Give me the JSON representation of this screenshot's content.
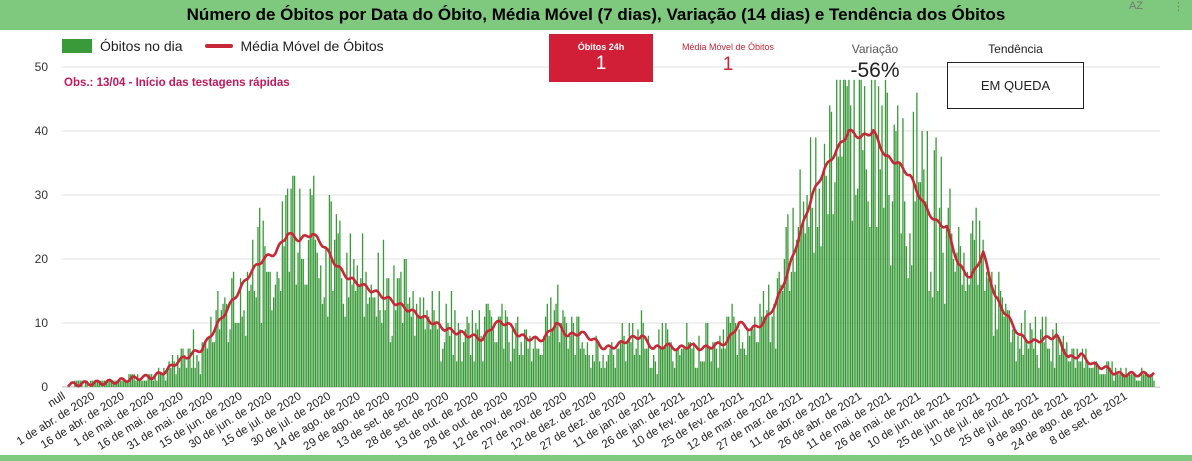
{
  "header": {
    "title": "Número de Óbitos por Data do Óbito, Média Móvel (7 dias), Variação (14 dias) e Tendência dos Óbitos",
    "corner_label": "AZ",
    "menu_icon": "more-vert-icon"
  },
  "legend": {
    "bars_label": "Óbitos no dia",
    "line_label": "Média Móvel de Óbitos"
  },
  "note": "Obs.: 13/04 - Início das testagens rápidas",
  "kpis": {
    "deaths_24h": {
      "label": "Óbitos 24h",
      "value": "1"
    },
    "moving_avg": {
      "label": "Média Móvel de Óbitos",
      "value": "1"
    },
    "variation": {
      "label": "Variação",
      "value": "-56%"
    },
    "trend": {
      "label": "Tendência",
      "value": "EM QUEDA"
    }
  },
  "colors": {
    "bars": "#3a9a3a",
    "line": "#c62838",
    "header": "#7fc97f",
    "kpi": "#d11f37"
  },
  "chart_data": {
    "type": "bar",
    "ylim": [
      0,
      50
    ],
    "yticks": [
      0,
      10,
      20,
      30,
      40,
      50
    ],
    "grid": true,
    "legend_position": "top-left",
    "x_tick_labels": [
      "null",
      "1 de abr. de 2020",
      "16 de abr. de 2020",
      "1 de mai. de 2020",
      "16 de mai. de 2020",
      "31 de mai. de 2020",
      "15 de jun. de 2020",
      "30 de jun. de 2020",
      "15 de jul. de 2020",
      "30 de jul. de 2020",
      "14 de ago. de 2020",
      "29 de ago. de 2020",
      "13 de set. de 2020",
      "28 de set. de 2020",
      "13 de out. de 2020",
      "28 de out. de 2020",
      "12 de nov. de 2020",
      "27 de nov. de 2020",
      "12 de dez. de 2020",
      "27 de dez. de 2020",
      "11 de jan. de 2021",
      "26 de jan. de 2021",
      "10 de fev. de 2021",
      "25 de fev. de 2021",
      "12 de mar. de 2021",
      "27 de mar. de 2021",
      "11 de abr. de 2021",
      "26 de abr. de 2021",
      "11 de mai. de 2021",
      "26 de mai. de 2021",
      "10 de jun. de 2021",
      "25 de jun. de 2021",
      "10 de jul. de 2021",
      "25 de jul. de 2021",
      "9 de ago. de 2021",
      "24 de ago. de 2021",
      "8 de set. de 2021"
    ],
    "moving_average_weekly": [
      [
        "2020-04-01",
        0.3
      ],
      [
        "2020-04-08",
        0.5
      ],
      [
        "2020-04-15",
        0.6
      ],
      [
        "2020-04-22",
        0.7
      ],
      [
        "2020-04-29",
        0.9
      ],
      [
        "2020-05-06",
        1.2
      ],
      [
        "2020-05-13",
        1.5
      ],
      [
        "2020-05-20",
        1.6
      ],
      [
        "2020-05-27",
        2.5
      ],
      [
        "2020-06-03",
        4
      ],
      [
        "2020-06-10",
        5
      ],
      [
        "2020-06-17",
        6
      ],
      [
        "2020-06-24",
        9
      ],
      [
        "2020-07-01",
        12
      ],
      [
        "2020-07-08",
        15
      ],
      [
        "2020-07-15",
        18
      ],
      [
        "2020-07-22",
        20
      ],
      [
        "2020-07-29",
        21
      ],
      [
        "2020-08-05",
        24
      ],
      [
        "2020-08-12",
        23
      ],
      [
        "2020-08-19",
        24
      ],
      [
        "2020-08-26",
        22
      ],
      [
        "2020-09-02",
        19
      ],
      [
        "2020-09-09",
        17
      ],
      [
        "2020-09-16",
        16
      ],
      [
        "2020-09-23",
        15
      ],
      [
        "2020-09-30",
        14
      ],
      [
        "2020-10-07",
        13
      ],
      [
        "2020-10-14",
        12
      ],
      [
        "2020-10-21",
        11
      ],
      [
        "2020-10-28",
        10
      ],
      [
        "2020-11-04",
        9
      ],
      [
        "2020-11-11",
        8.5
      ],
      [
        "2020-11-18",
        8
      ],
      [
        "2020-11-25",
        7.5
      ],
      [
        "2020-12-02",
        10
      ],
      [
        "2020-12-09",
        10
      ],
      [
        "2020-12-16",
        8
      ],
      [
        "2020-12-23",
        7.5
      ],
      [
        "2020-12-30",
        7.5
      ],
      [
        "2021-01-06",
        10
      ],
      [
        "2021-01-13",
        8
      ],
      [
        "2021-01-20",
        8.5
      ],
      [
        "2021-01-27",
        7.5
      ],
      [
        "2021-02-03",
        6
      ],
      [
        "2021-02-10",
        6.5
      ],
      [
        "2021-02-17",
        7.5
      ],
      [
        "2021-02-24",
        8
      ],
      [
        "2021-03-03",
        6
      ],
      [
        "2021-03-10",
        6.5
      ],
      [
        "2021-03-17",
        6
      ],
      [
        "2021-03-24",
        6.5
      ],
      [
        "2021-03-31",
        6
      ],
      [
        "2021-04-07",
        6.5
      ],
      [
        "2021-04-14",
        7
      ],
      [
        "2021-04-21",
        10
      ],
      [
        "2021-04-28",
        9
      ],
      [
        "2021-05-05",
        10
      ],
      [
        "2021-05-12",
        13
      ],
      [
        "2021-05-19",
        18
      ],
      [
        "2021-05-26",
        24
      ],
      [
        "2021-06-02",
        30
      ],
      [
        "2021-06-09",
        34
      ],
      [
        "2021-06-16",
        37
      ],
      [
        "2021-06-23",
        40
      ],
      [
        "2021-06-30",
        39
      ],
      [
        "2021-07-07",
        40
      ],
      [
        "2021-07-14",
        36
      ],
      [
        "2021-07-21",
        35
      ],
      [
        "2021-07-28",
        33
      ],
      [
        "2021-08-04",
        29
      ],
      [
        "2021-08-11",
        26
      ],
      [
        "2021-08-18",
        25
      ],
      [
        "2021-08-25",
        19
      ],
      [
        "2021-09-01",
        17
      ],
      [
        "2021-09-08",
        21
      ],
      [
        "2021-09-15",
        14
      ],
      [
        "2021-09-22",
        11
      ],
      [
        "2021-09-29",
        8
      ],
      [
        "2021-10-06",
        7
      ],
      [
        "2021-10-13",
        7.5
      ],
      [
        "2021-10-20",
        8
      ],
      [
        "2021-10-27",
        4.5
      ],
      [
        "2021-11-03",
        5
      ],
      [
        "2021-11-10",
        3.5
      ],
      [
        "2021-11-17",
        3
      ],
      [
        "2021-11-24",
        2
      ],
      [
        "2021-12-01",
        2
      ],
      [
        "2021-12-08",
        2
      ],
      [
        "2021-12-15",
        2
      ]
    ]
  }
}
